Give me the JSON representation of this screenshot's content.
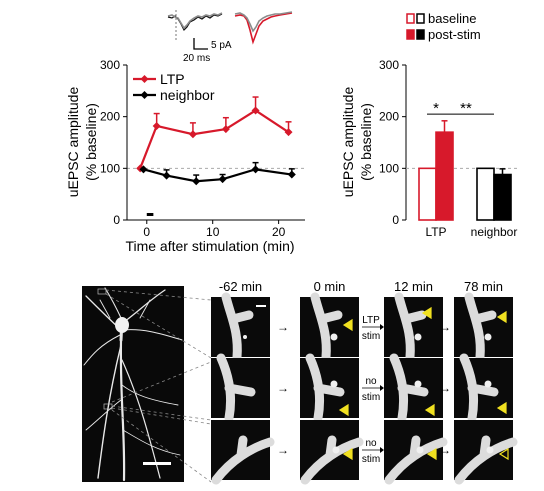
{
  "colors": {
    "ltp": "#d7192b",
    "neighbor": "#000000",
    "trace_gray": "#8c8c8c",
    "arrowhead": "#f0e020",
    "baseline_line": "#aaaaaa"
  },
  "traces": {
    "scale_amp": "5 pA",
    "scale_time": "20 ms"
  },
  "chart_data": [
    {
      "type": "line",
      "xlabel": "Time after stimulation (min)",
      "ylabel": "uEPSC amplitude (% baseline)",
      "ylabel_lines": [
        "uEPSC amplitude",
        "(% baseline)"
      ],
      "xlim": [
        -3,
        24
      ],
      "ylim": [
        0,
        300
      ],
      "xticks": [
        0,
        10,
        20
      ],
      "yticks": [
        0,
        100,
        200,
        300
      ],
      "reference_line": 100,
      "legend": "top-left",
      "series": [
        {
          "name": "LTP",
          "color": "#d7192b",
          "x": [
            -1,
            1.5,
            7,
            12,
            16.5,
            21.5
          ],
          "y": [
            100,
            182,
            166,
            176,
            212,
            170
          ],
          "err": [
            0,
            24,
            22,
            22,
            26,
            20
          ]
        },
        {
          "name": "neighbor",
          "color": "#000000",
          "x": [
            -0.5,
            3,
            7.5,
            11.5,
            16.5,
            22
          ],
          "y": [
            98,
            86,
            75,
            79,
            98,
            88
          ],
          "err": [
            0,
            11,
            12,
            9,
            13,
            11
          ]
        }
      ],
      "stim_marker_x": [
        0,
        1
      ]
    },
    {
      "type": "bar",
      "ylabel": "uEPSC amplitude (% baseline)",
      "ylabel_lines": [
        "uEPSC amplitude",
        "(% baseline)"
      ],
      "ylim": [
        0,
        300
      ],
      "yticks": [
        0,
        100,
        200,
        300
      ],
      "categories": [
        "LTP",
        "neighbor"
      ],
      "legend": "top-right",
      "series": [
        {
          "name": "baseline",
          "values": [
            100,
            100
          ],
          "err": [
            0,
            0
          ]
        },
        {
          "name": "post-stim",
          "values": [
            170,
            88
          ],
          "err": [
            22,
            11
          ]
        }
      ],
      "significance": [
        "*",
        "**"
      ]
    }
  ],
  "microscopy": {
    "time_labels": [
      "-62 min",
      "0 min",
      "12 min",
      "78 min"
    ],
    "conditions": [
      {
        "top": "LTP",
        "bottom": "stim"
      },
      {
        "top": "no",
        "bottom": "stim"
      },
      {
        "top": "no",
        "bottom": "stim"
      }
    ]
  }
}
